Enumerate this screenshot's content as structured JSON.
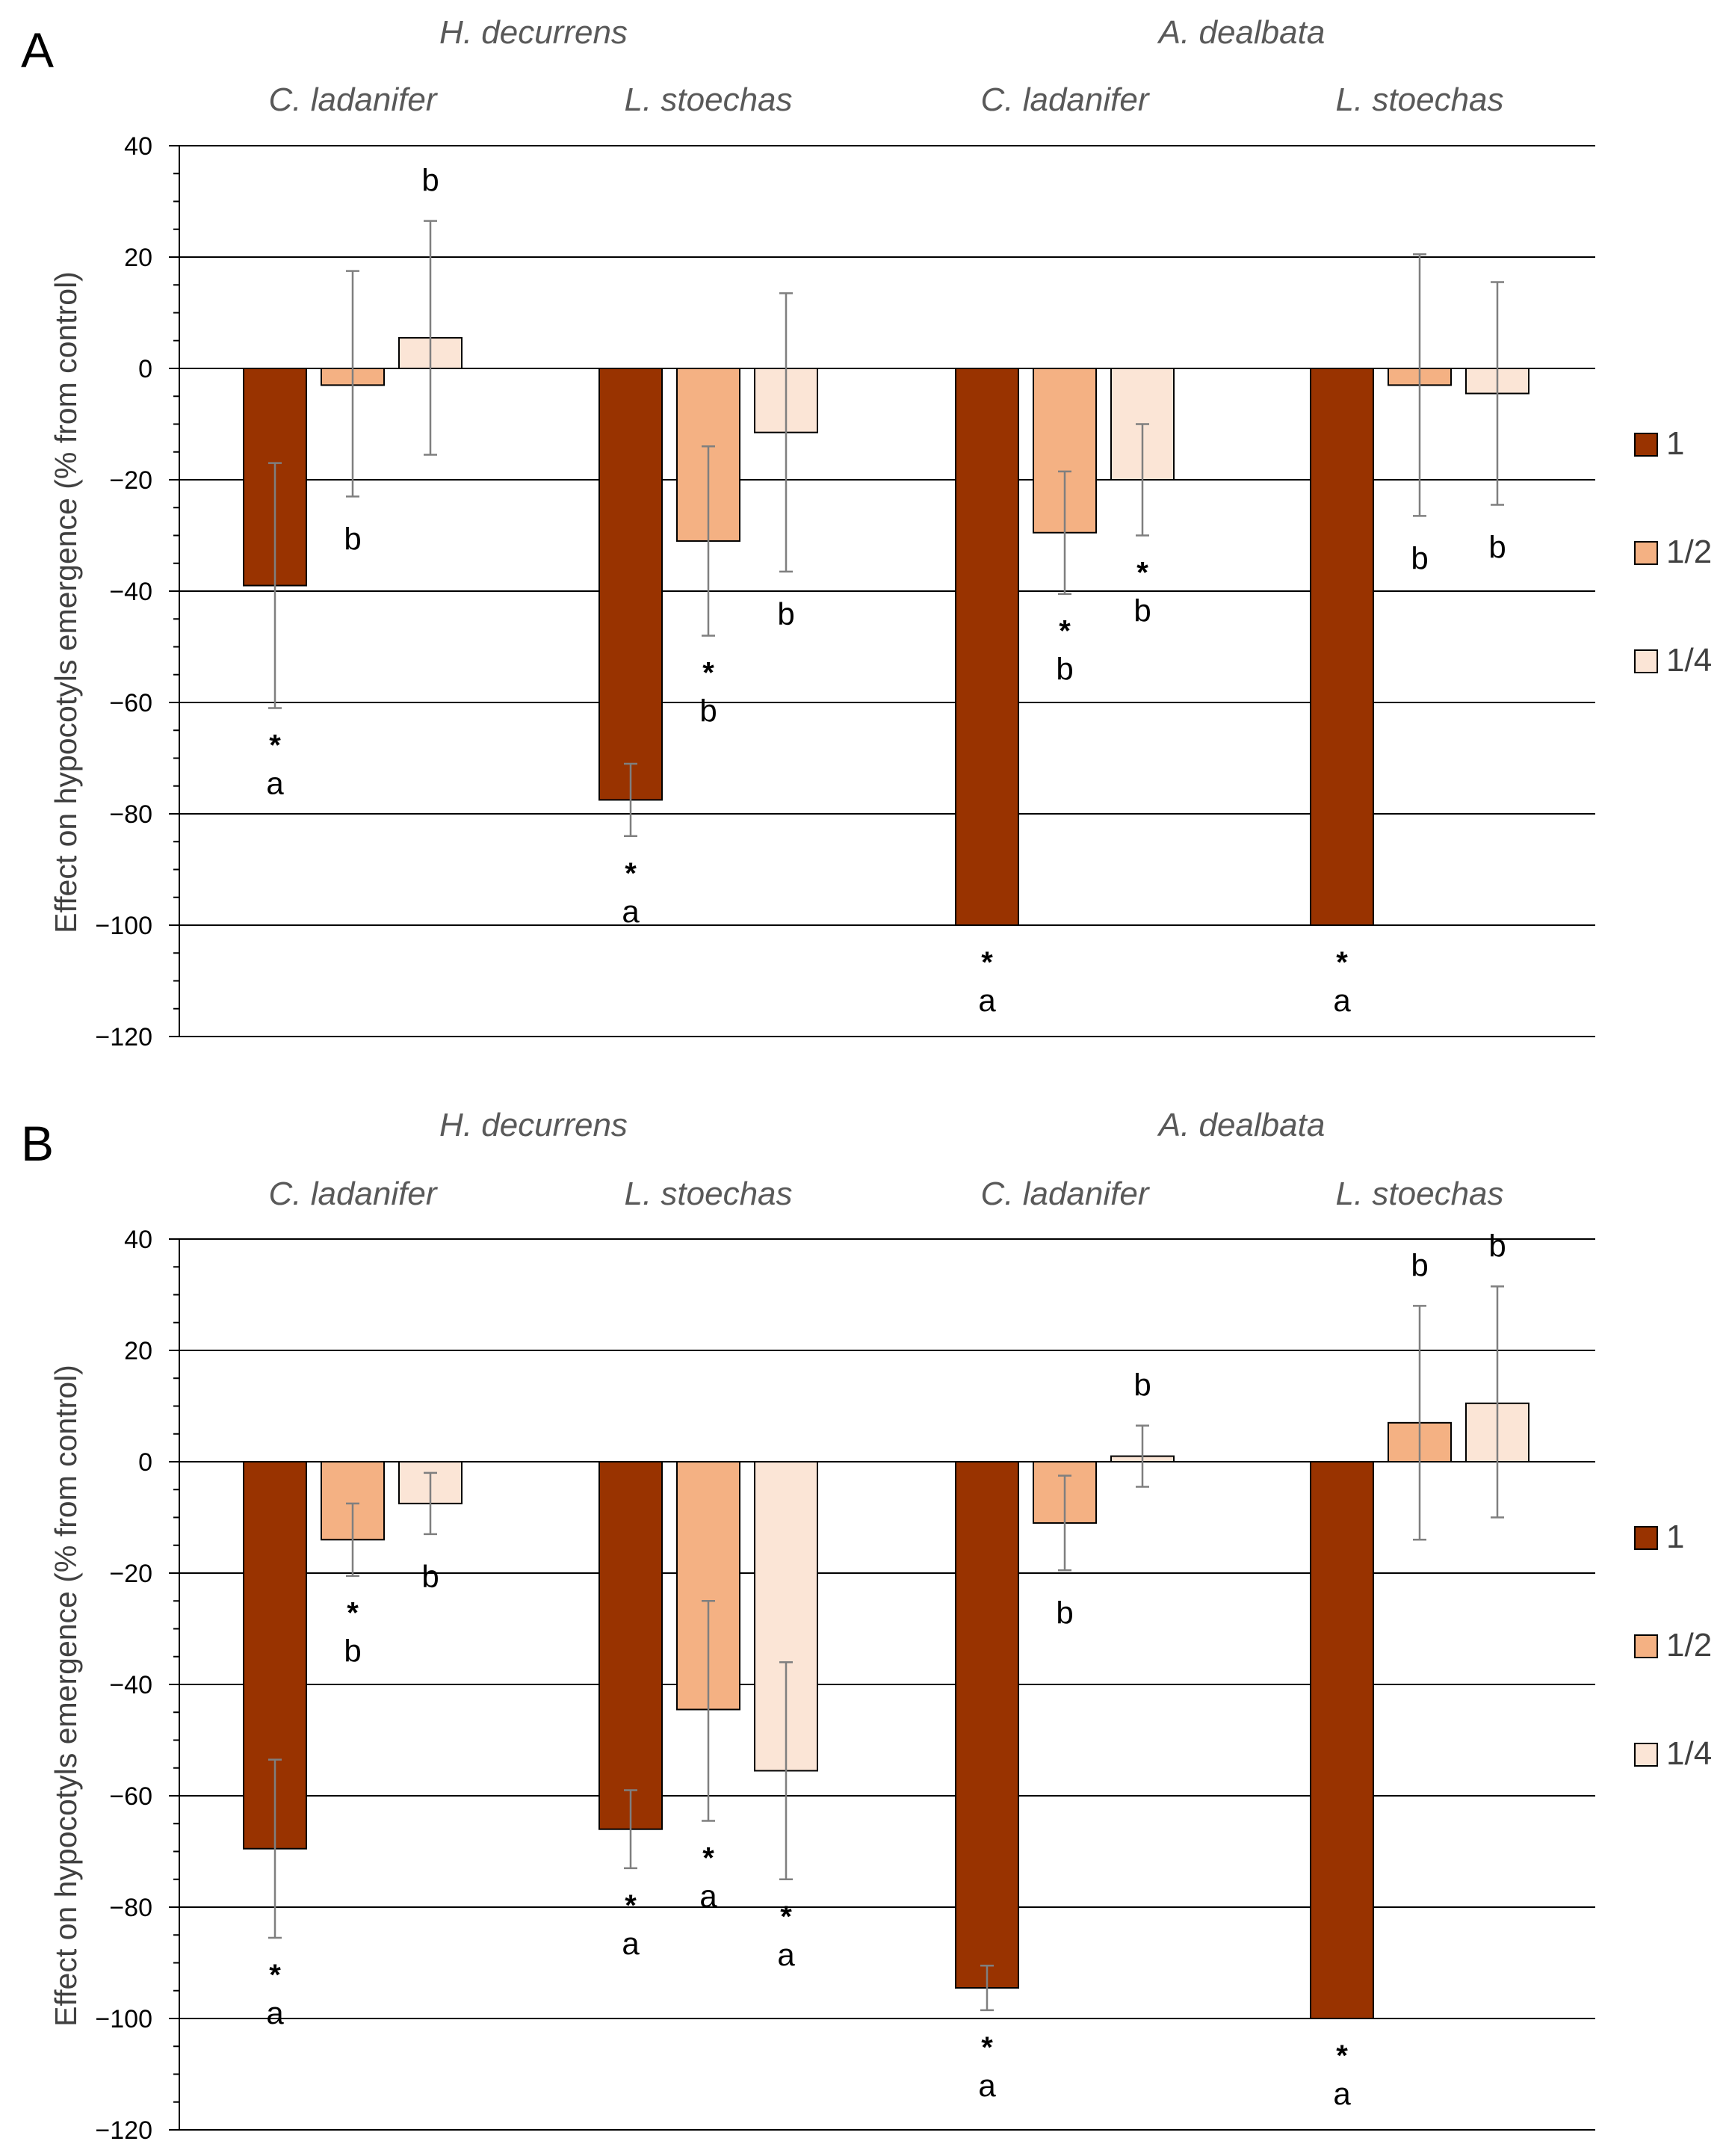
{
  "colors": {
    "dose_1": "#993300",
    "dose_half": "#F4B183",
    "dose_quarter": "#FBE5D6",
    "bar_outline": "#000000",
    "gridline": "#000000",
    "error_bar": "#7F7F7F",
    "header_text": "#595959",
    "axis_text": "#404040"
  },
  "legend": {
    "position": "right",
    "entries": [
      "1",
      "1/2",
      "1/4"
    ]
  },
  "chart_data": [
    {
      "type": "bar",
      "panel_label": "A",
      "ylabel": "Effect on hypocotyls emergence (% from control)",
      "ylim": [
        -120,
        40
      ],
      "yticks": [
        "40",
        "20",
        "0",
        "−20",
        "−40",
        "−60",
        "−80",
        "−100",
        "−120"
      ],
      "grid": true,
      "top_groups": [
        "H. decurrens",
        "A. dealbata"
      ],
      "categories": [
        "C. ladanifer",
        "L. stoechas",
        "C. ladanifer",
        "L. stoechas"
      ],
      "series": [
        {
          "name": "1",
          "values": [
            -39,
            -77.5,
            -100,
            -100
          ],
          "err_low": [
            -61,
            -84,
            -100,
            -100
          ],
          "err_high": [
            -17,
            -71,
            -100,
            -100
          ],
          "star": [
            true,
            true,
            true,
            true
          ],
          "letters": [
            "a",
            "a",
            "a",
            "a"
          ]
        },
        {
          "name": "1/2",
          "values": [
            -3,
            -31,
            -29.5,
            -3
          ],
          "err_low": [
            -23,
            -48,
            -40.5,
            -26.5
          ],
          "err_high": [
            17.5,
            -14,
            -18.5,
            20.5
          ],
          "star": [
            false,
            true,
            true,
            false
          ],
          "letters": [
            "b",
            "b",
            "b",
            "b"
          ]
        },
        {
          "name": "1/4",
          "values": [
            5.5,
            -11.5,
            -20,
            -4.5
          ],
          "err_low": [
            -15.5,
            -36.5,
            -30,
            -24.5
          ],
          "err_high": [
            26.5,
            13.5,
            -10,
            15.5
          ],
          "star": [
            false,
            false,
            true,
            false
          ],
          "letters": [
            "b",
            "b",
            "b",
            "b"
          ]
        }
      ]
    },
    {
      "type": "bar",
      "panel_label": "B",
      "ylabel": "Effect on hypocotyls emergence (% from control)",
      "ylim": [
        -120,
        40
      ],
      "yticks": [
        "40",
        "20",
        "0",
        "−20",
        "−40",
        "−60",
        "−80",
        "−100",
        "−120"
      ],
      "grid": true,
      "top_groups": [
        "H. decurrens",
        "A. dealbata"
      ],
      "categories": [
        "C. ladanifer",
        "L. stoechas",
        "C. ladanifer",
        "L. stoechas"
      ],
      "series": [
        {
          "name": "1",
          "values": [
            -69.5,
            -66,
            -94.5,
            -100
          ],
          "err_low": [
            -85.5,
            -73,
            -98.5,
            -100
          ],
          "err_high": [
            -53.5,
            -59,
            -90.5,
            -100
          ],
          "star": [
            true,
            true,
            true,
            true
          ],
          "letters": [
            "a",
            "a",
            "a",
            "a"
          ]
        },
        {
          "name": "1/2",
          "values": [
            -14,
            -44.5,
            -11,
            7
          ],
          "err_low": [
            -20.5,
            -64.5,
            -19.5,
            -14
          ],
          "err_high": [
            -7.5,
            -25,
            -2.5,
            28
          ],
          "star": [
            true,
            true,
            false,
            false
          ],
          "letters": [
            "b",
            "a",
            "b",
            "b"
          ]
        },
        {
          "name": "1/4",
          "values": [
            -7.5,
            -55.5,
            1,
            10.5
          ],
          "err_low": [
            -13,
            -75,
            -4.5,
            -10
          ],
          "err_high": [
            -2,
            -36,
            6.5,
            31.5
          ],
          "star": [
            false,
            true,
            false,
            false
          ],
          "letters": [
            "b",
            "a",
            "b",
            "b"
          ]
        }
      ]
    }
  ]
}
